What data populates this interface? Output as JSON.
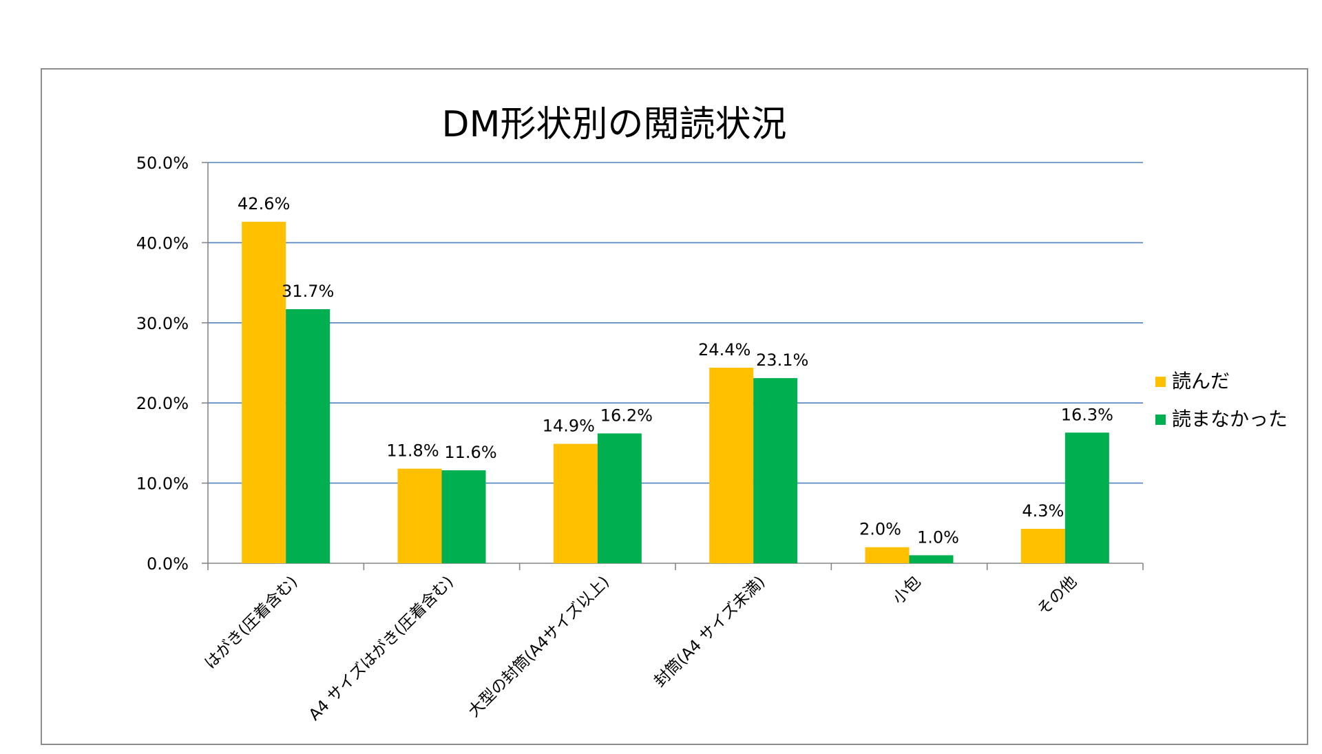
{
  "colors": {
    "series_read": "#FFC000",
    "series_not_read": "#00B050",
    "gridline": "#4F81BD",
    "axis": "#868686",
    "frame": "#8C8C8C"
  },
  "chart_data": {
    "type": "bar",
    "title": "DM形状別の閲読状況",
    "xlabel": "",
    "ylabel": "",
    "ylim": [
      0,
      50
    ],
    "y_ticks": [
      "0.0%",
      "10.0%",
      "20.0%",
      "30.0%",
      "40.0%",
      "50.0%"
    ],
    "y_tick_values": [
      0,
      10,
      20,
      30,
      40,
      50
    ],
    "grid": true,
    "legend_position": "right",
    "categories": [
      "はがき(圧着含む)",
      "A4 サイズはがき(圧着含む)",
      "大型の封筒(A4サイズ以上)",
      "封筒(A4 サイズ未満)",
      "小包",
      "その他"
    ],
    "series": [
      {
        "name": "読んだ",
        "color": "#FFC000",
        "values": [
          42.6,
          11.8,
          14.9,
          24.4,
          2.0,
          4.3
        ],
        "labels": [
          "42.6%",
          "11.8%",
          "14.9%",
          "24.4%",
          "2.0%",
          "4.3%"
        ]
      },
      {
        "name": "読まなかった",
        "color": "#00B050",
        "values": [
          31.7,
          11.6,
          16.2,
          23.1,
          1.0,
          16.3
        ],
        "labels": [
          "31.7%",
          "11.6%",
          "16.2%",
          "23.1%",
          "1.0%",
          "16.3%"
        ]
      }
    ]
  }
}
